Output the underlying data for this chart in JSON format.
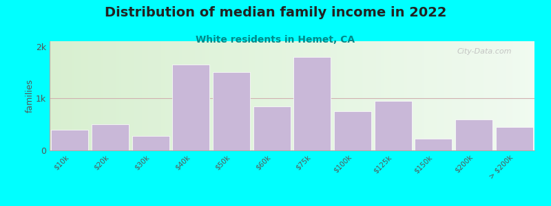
{
  "title": "Distribution of median family income in 2022",
  "subtitle": "White residents in Hemet, CA",
  "title_fontsize": 14,
  "subtitle_fontsize": 10,
  "ylabel": "families",
  "background_outer": "#00FFFF",
  "bar_color": "#c9b8d8",
  "bar_edgecolor": "#ffffff",
  "categories": [
    "$10k",
    "$20k",
    "$30k",
    "$40k",
    "$50k",
    "$60k",
    "$75k",
    "$100k",
    "$125k",
    "$150k",
    "$200k",
    "> $200k"
  ],
  "values": [
    400,
    500,
    280,
    1650,
    1500,
    850,
    1800,
    750,
    950,
    230,
    600,
    450
  ],
  "ylim": [
    0,
    2100
  ],
  "yticks": [
    0,
    1000,
    2000
  ],
  "yticklabels": [
    "0",
    "1k",
    "2k"
  ],
  "watermark": "City-Data.com",
  "subtitle_color": "#008888",
  "title_color": "#222222",
  "grid_color": "#d0b0b0",
  "bg_left": "#d8efd0",
  "bg_right": "#f0faf0"
}
